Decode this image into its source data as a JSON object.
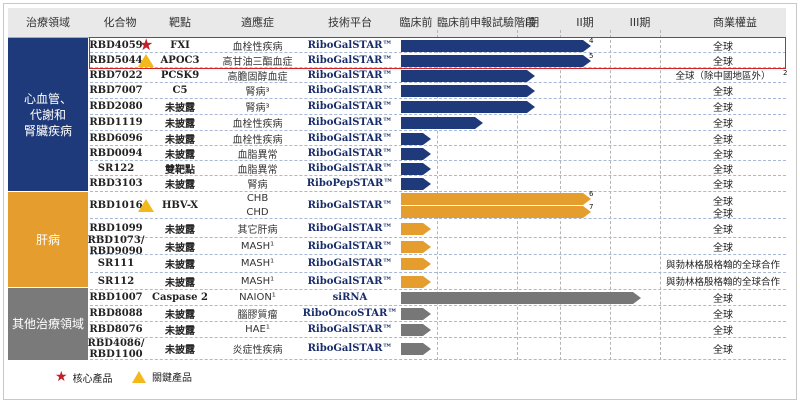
{
  "header": {
    "area": "治療領域",
    "compound": "化合物",
    "target": "靶點",
    "indication": "適應症",
    "platform": "技術平台",
    "preclinical": "臨床前",
    "ind": "臨床前申報試驗階段",
    "phase1": "I期",
    "phase2": "II期",
    "phase3": "III期",
    "rights": "商業權益"
  },
  "areas": [
    {
      "label_lines": [
        "心血管、",
        "代謝和",
        "腎臟疾病"
      ],
      "color": "#1f3a7a"
    },
    {
      "label_lines": [
        "肝病"
      ],
      "color": "#e59e2e"
    },
    {
      "label_lines": [
        "其他治療領域"
      ],
      "color": "#7a7a7a"
    }
  ],
  "rows": [
    {
      "compound": "RBD4059",
      "mark": "star",
      "target": "FXI",
      "indication": "血栓性疾病",
      "platform": "RiboGalSTAR™",
      "rights": "全球",
      "progress": "II期",
      "color": "blue",
      "sup": "4"
    },
    {
      "compound": "RBD5044",
      "mark": "triangle",
      "target": "APOC3",
      "indication": "高甘油三酯血症",
      "platform": "RiboGalSTAR™",
      "rights": "全球",
      "progress": "II期",
      "color": "blue",
      "sup": "5"
    },
    {
      "compound": "RBD7022",
      "mark": "",
      "target": "PCSK9",
      "indication": "高膽固醇血症",
      "platform": "RiboGalSTAR™",
      "rights": "全球（除中國地區外）",
      "rights_sup": "2",
      "progress": "I期",
      "color": "blue",
      "sup": ""
    },
    {
      "compound": "RBD7007",
      "mark": "",
      "target": "C5",
      "indication": "腎病³",
      "platform": "RiboGalSTAR™",
      "rights": "全球",
      "progress": "I期",
      "color": "blue",
      "sup": ""
    },
    {
      "compound": "RBD2080",
      "mark": "",
      "target": "未披露",
      "indication": "腎病³",
      "platform": "RiboGalSTAR™",
      "rights": "全球",
      "progress": "I期",
      "color": "blue",
      "sup": ""
    },
    {
      "compound": "RBD1119",
      "mark": "",
      "target": "未披露",
      "indication": "血栓性疾病",
      "platform": "RiboGalSTAR™",
      "rights": "全球",
      "progress": "臨床前申報試驗階段",
      "color": "blue",
      "sup": ""
    },
    {
      "compound": "RBD6096",
      "mark": "",
      "target": "未披露",
      "indication": "血栓性疾病",
      "platform": "RiboGalSTAR™",
      "rights": "全球",
      "progress": "臨床前",
      "color": "blue",
      "sup": ""
    },
    {
      "compound": "RBD0094",
      "mark": "",
      "target": "未披露",
      "indication": "血脂異常",
      "platform": "RiboGalSTAR™",
      "rights": "全球",
      "progress": "臨床前",
      "color": "blue",
      "sup": ""
    },
    {
      "compound": "SR122",
      "mark": "",
      "target": "雙靶點",
      "indication": "血脂異常",
      "platform": "RiboGalSTAR™",
      "rights": "全球",
      "progress": "臨床前",
      "color": "blue",
      "sup": ""
    },
    {
      "compound": "RBD3103",
      "mark": "",
      "target": "未披露",
      "indication": "腎病",
      "platform": "RiboPepSTAR™",
      "rights": "全球",
      "progress": "臨床前",
      "color": "blue",
      "sup": ""
    },
    {
      "compound": "RBD1016",
      "mark": "triangle",
      "target": "HBV-X",
      "indication": "CHB",
      "platform": "RiboGalSTAR™",
      "rights": "全球",
      "progress": "II期",
      "color": "orange",
      "sup": "6",
      "sub_indication": "CHD",
      "sub_rights": "全球",
      "sub_sup": "7"
    },
    {
      "compound": "RBD1099",
      "mark": "",
      "target": "未披露",
      "indication": "其它肝病",
      "platform": "RiboGalSTAR™",
      "rights": "全球",
      "progress": "臨床前",
      "color": "orange",
      "sup": ""
    },
    {
      "compound": "RBD1073/ RBD9090",
      "mark": "",
      "target": "未披露",
      "indication": "MASH¹",
      "platform": "RiboGalSTAR™",
      "rights": "全球",
      "progress": "臨床前",
      "color": "orange",
      "sup": ""
    },
    {
      "compound": "SR111",
      "mark": "",
      "target": "未披露",
      "indication": "MASH¹",
      "platform": "RiboGalSTAR™",
      "rights": "與勃林格殷格翰的全球合作",
      "progress": "臨床前",
      "color": "orange",
      "sup": ""
    },
    {
      "compound": "SR112",
      "mark": "",
      "target": "未披露",
      "indication": "MASH¹",
      "platform": "RiboGalSTAR™",
      "rights": "與勃林格殷格翰的全球合作",
      "progress": "臨床前",
      "color": "orange",
      "sup": ""
    },
    {
      "compound": "RBD1007",
      "mark": "",
      "target": "Caspase 2",
      "indication": "NAION¹",
      "platform": "siRNA",
      "rights": "全球",
      "progress": "III期",
      "color": "gray",
      "sup": ""
    },
    {
      "compound": "RBD8088",
      "mark": "",
      "target": "未披露",
      "indication": "腦膠質瘤",
      "platform": "RiboOncoSTAR™",
      "rights": "全球",
      "progress": "臨床前",
      "color": "gray",
      "sup": ""
    },
    {
      "compound": "RBD8076",
      "mark": "",
      "target": "未披露",
      "indication": "HAE¹",
      "platform": "RiboGalSTAR™",
      "rights": "全球",
      "progress": "臨床前",
      "color": "gray",
      "sup": ""
    },
    {
      "compound": "RBD4086/ RBD1100",
      "mark": "",
      "target": "未披露",
      "indication": "炎症性疾病",
      "platform": "RiboGalSTAR™",
      "rights": "全球",
      "progress": "臨床前",
      "color": "gray",
      "sup": ""
    }
  ],
  "legend": {
    "core": "核心產品",
    "key": "關鍵產品"
  },
  "colors": {
    "blue": "#1f3a7a",
    "orange": "#e59e2e",
    "gray": "#7a7a7a",
    "highlight": "#d02424"
  }
}
